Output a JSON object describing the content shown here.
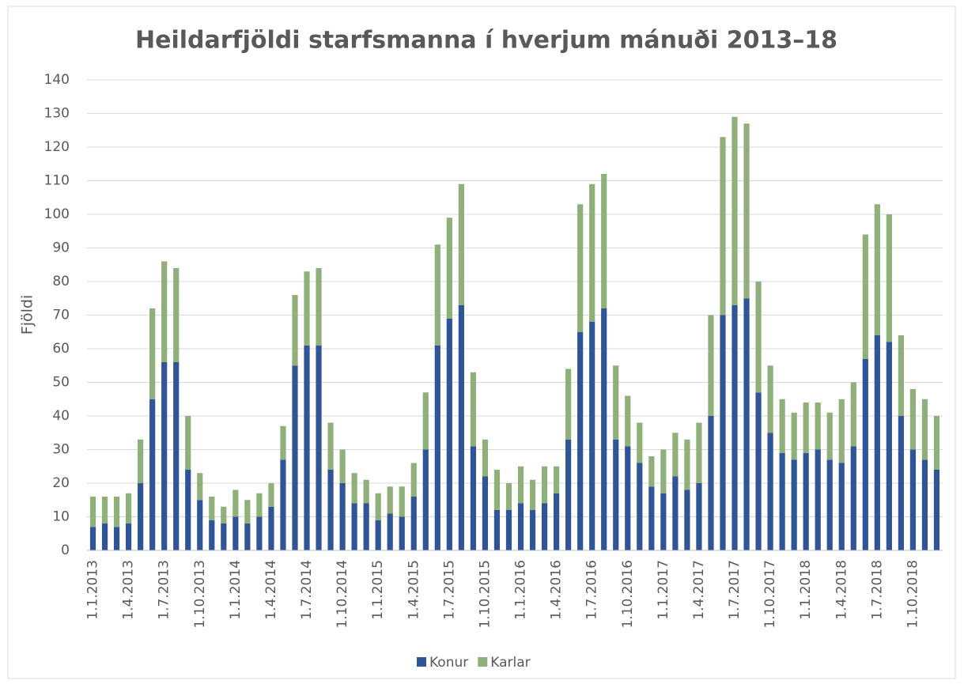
{
  "chart_data": {
    "type": "stacked_bar",
    "title": "Heildarfjöldi starfsmanna í hverjum mánuði 2013–18",
    "ylabel": "Fjöldi",
    "categories": [
      "1.1.2013",
      null,
      null,
      "1.4.2013",
      null,
      null,
      "1.7.2013",
      null,
      null,
      "1.10.2013",
      null,
      null,
      "1.1.2014",
      null,
      null,
      "1.4.2014",
      null,
      null,
      "1.7.2014",
      null,
      null,
      "1.10.2014",
      null,
      null,
      "1.1.2015",
      null,
      null,
      "1.4.2015",
      null,
      null,
      "1.7.2015",
      null,
      null,
      "1.10.2015",
      null,
      null,
      "1.1.2016",
      null,
      null,
      "1.4.2016",
      null,
      null,
      "1.7.2016",
      null,
      null,
      "1.10.2016",
      null,
      null,
      "1.1.2017",
      null,
      null,
      "1.4.2017",
      null,
      null,
      "1.7.2017",
      null,
      null,
      "1.10.2017",
      null,
      null,
      "1.1.2018",
      null,
      null,
      "1.4.2018",
      null,
      null,
      "1.7.2018",
      null,
      null,
      "1.10.2018",
      null,
      null
    ],
    "series": [
      {
        "name": "Konur",
        "color": "#2f5597",
        "values": [
          7,
          8,
          7,
          8,
          20,
          45,
          56,
          56,
          24,
          15,
          9,
          8,
          10,
          8,
          10,
          13,
          27,
          55,
          61,
          61,
          24,
          20,
          14,
          14,
          9,
          11,
          10,
          16,
          30,
          61,
          69,
          73,
          31,
          22,
          12,
          12,
          14,
          12,
          14,
          17,
          33,
          65,
          68,
          72,
          33,
          31,
          26,
          19,
          17,
          22,
          18,
          20,
          40,
          70,
          73,
          75,
          47,
          35,
          29,
          27,
          29,
          30,
          27,
          26,
          31,
          57,
          64,
          62,
          40,
          30,
          27,
          24
        ]
      },
      {
        "name": "Karlar",
        "color": "#8fb07a",
        "values": [
          9,
          8,
          9,
          9,
          13,
          27,
          30,
          28,
          16,
          8,
          7,
          5,
          8,
          7,
          7,
          7,
          10,
          21,
          22,
          23,
          14,
          10,
          9,
          7,
          8,
          8,
          9,
          10,
          17,
          30,
          30,
          36,
          22,
          11,
          12,
          8,
          11,
          9,
          11,
          8,
          21,
          38,
          41,
          40,
          22,
          15,
          12,
          9,
          13,
          13,
          15,
          18,
          30,
          53,
          56,
          52,
          33,
          20,
          16,
          14,
          15,
          14,
          14,
          19,
          19,
          37,
          39,
          38,
          24,
          18,
          18,
          16
        ]
      }
    ],
    "ylim": [
      0,
      140
    ],
    "yticks": [
      0,
      10,
      20,
      30,
      40,
      50,
      60,
      70,
      80,
      90,
      100,
      110,
      120,
      130,
      140
    ],
    "grid": true,
    "legend": "bottom"
  }
}
